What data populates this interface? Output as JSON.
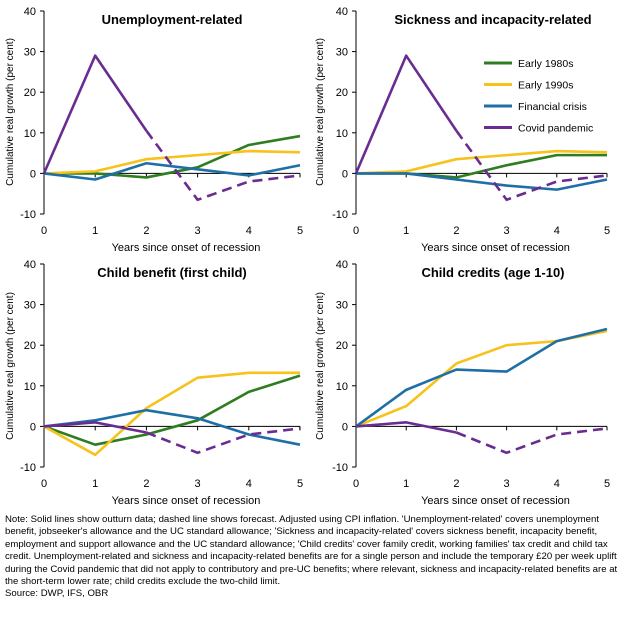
{
  "colors": {
    "early_1980s": "#2e7d1f",
    "early_1990s": "#f6c21b",
    "financial_crisis": "#1f6fa6",
    "covid_pandemic": "#6a2c91",
    "axis": "#000000"
  },
  "chart_data": [
    {
      "type": "line",
      "title": "Unemployment-related",
      "xlabel": "Years since onset of recession",
      "ylabel": "Cumulative real growth (per cent)",
      "x": [
        0,
        1,
        2,
        3,
        4,
        5
      ],
      "xlim": [
        0,
        5
      ],
      "ylim": [
        -10,
        40
      ],
      "yticks": [
        -10,
        0,
        10,
        20,
        30,
        40
      ],
      "grid": false,
      "legend": "none",
      "series": [
        {
          "name": "Early 1980s",
          "color": "#2e7d1f",
          "values": [
            0,
            0,
            -1,
            1.5,
            7,
            9.2
          ]
        },
        {
          "name": "Early 1990s",
          "color": "#f6c21b",
          "values": [
            0,
            0.5,
            3.5,
            4.5,
            5.5,
            5.2
          ]
        },
        {
          "name": "Financial crisis",
          "color": "#1f6fa6",
          "values": [
            0,
            -1.5,
            2.5,
            1,
            -0.5,
            2
          ]
        },
        {
          "name": "Covid pandemic",
          "color": "#6a2c91",
          "values": [
            0,
            29,
            10.5,
            null,
            null,
            null
          ],
          "forecast_values": [
            null,
            null,
            10.5,
            -6.5,
            -2,
            -0.5
          ]
        }
      ]
    },
    {
      "type": "line",
      "title": "Sickness and incapacity-related",
      "xlabel": "Years since onset of recession",
      "ylabel": "Cumulative real growth (per cent)",
      "x": [
        0,
        1,
        2,
        3,
        4,
        5
      ],
      "xlim": [
        0,
        5
      ],
      "ylim": [
        -10,
        40
      ],
      "yticks": [
        -10,
        0,
        10,
        20,
        30,
        40
      ],
      "grid": false,
      "legend": "right",
      "series": [
        {
          "name": "Early 1980s",
          "color": "#2e7d1f",
          "values": [
            0,
            0,
            -1,
            2,
            4.5,
            4.5
          ]
        },
        {
          "name": "Early 1990s",
          "color": "#f6c21b",
          "values": [
            0,
            0.5,
            3.5,
            4.5,
            5.5,
            5.2
          ]
        },
        {
          "name": "Financial crisis",
          "color": "#1f6fa6",
          "values": [
            0,
            0,
            -1.5,
            -3,
            -4,
            -1.5
          ]
        },
        {
          "name": "Covid pandemic",
          "color": "#6a2c91",
          "values": [
            0,
            29,
            10.5,
            null,
            null,
            null
          ],
          "forecast_values": [
            null,
            null,
            10.5,
            -6.5,
            -2,
            -0.5
          ]
        }
      ]
    },
    {
      "type": "line",
      "title": "Child benefit (first child)",
      "xlabel": "Years since onset of recession",
      "ylabel": "Cumulative real growth (per cent)",
      "x": [
        0,
        1,
        2,
        3,
        4,
        5
      ],
      "xlim": [
        0,
        5
      ],
      "ylim": [
        -10,
        40
      ],
      "yticks": [
        -10,
        0,
        10,
        20,
        30,
        40
      ],
      "grid": false,
      "legend": "none",
      "series": [
        {
          "name": "Early 1980s",
          "color": "#2e7d1f",
          "values": [
            0,
            -4.5,
            -2,
            1.5,
            8.5,
            12.5
          ]
        },
        {
          "name": "Early 1990s",
          "color": "#f6c21b",
          "values": [
            0,
            -7,
            4.5,
            12,
            13.2,
            13.2
          ]
        },
        {
          "name": "Financial crisis",
          "color": "#1f6fa6",
          "values": [
            0,
            1.5,
            4,
            2,
            -2,
            -4.5
          ]
        },
        {
          "name": "Covid pandemic",
          "color": "#6a2c91",
          "values": [
            0,
            1,
            -1.5,
            null,
            null,
            null
          ],
          "forecast_values": [
            null,
            null,
            -1.5,
            -6.5,
            -2,
            -0.5
          ]
        }
      ]
    },
    {
      "type": "line",
      "title": "Child credits (age 1-10)",
      "xlabel": "Years since onset of recession",
      "ylabel": "Cumulative real growth (per cent)",
      "x": [
        0,
        1,
        2,
        3,
        4,
        5
      ],
      "xlim": [
        0,
        5
      ],
      "ylim": [
        -10,
        40
      ],
      "yticks": [
        -10,
        0,
        10,
        20,
        30,
        40
      ],
      "grid": false,
      "legend": "none",
      "series": [
        {
          "name": "Early 1990s",
          "color": "#f6c21b",
          "values": [
            0,
            5,
            15.5,
            20,
            21,
            23.5
          ]
        },
        {
          "name": "Financial crisis",
          "color": "#1f6fa6",
          "values": [
            0,
            9,
            14,
            13.5,
            21,
            24
          ]
        },
        {
          "name": "Covid pandemic",
          "color": "#6a2c91",
          "values": [
            0,
            1,
            -1.5,
            null,
            null,
            null
          ],
          "forecast_values": [
            null,
            null,
            -1.5,
            -6.5,
            -2,
            -0.5
          ]
        }
      ]
    }
  ],
  "legend": {
    "entries": [
      {
        "label": "Early 1980s",
        "color": "#2e7d1f"
      },
      {
        "label": "Early 1990s",
        "color": "#f6c21b"
      },
      {
        "label": "Financial crisis",
        "color": "#1f6fa6"
      },
      {
        "label": "Covid pandemic",
        "color": "#6a2c91"
      }
    ]
  },
  "note": {
    "text": "Note: Solid lines show outturn data; dashed line shows forecast. Adjusted using CPI inflation. 'Unemployment-related' covers unemployment benefit, jobseeker's allowance and the UC standard allowance; 'Sickness and incapacity-related' covers sickness benefit, incapacity benefit, employment and support allowance and the UC standard allowance; 'Child credits' cover family credit, working families' tax credit and child tax credit. Unemployment-related and sickness and incapacity-related benefits are for a single person and include the temporary £20 per week uplift during the Covid pandemic that did not apply to contributory and pre-UC benefits; where relevant, sickness and incapacity-related benefits are at the short-term lower rate; child credits exclude the two-child limit.",
    "source": "Source: DWP, IFS, OBR"
  }
}
